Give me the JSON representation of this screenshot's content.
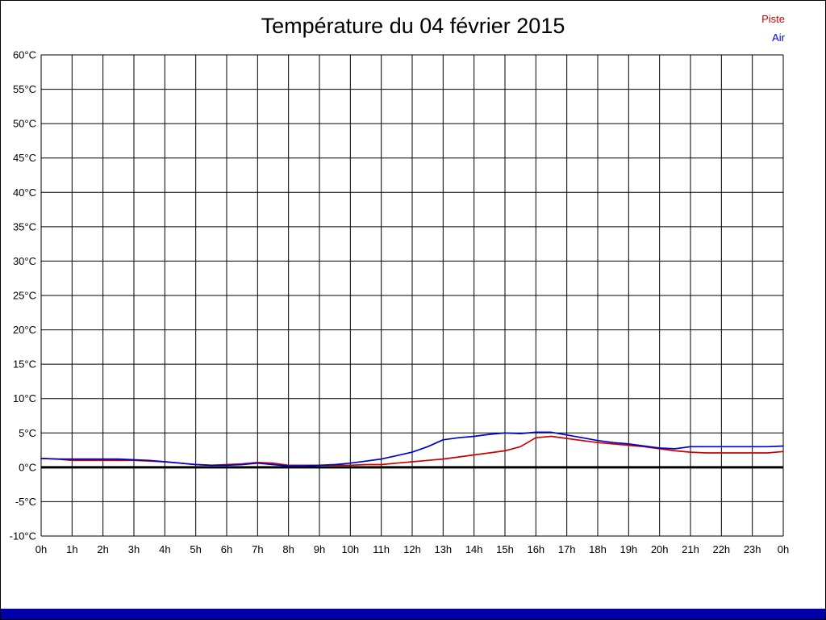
{
  "header": {
    "title": "Température du 04 février 2015"
  },
  "legend": {
    "items": [
      {
        "label": "Piste",
        "color": "#cc0000"
      },
      {
        "label": "Air",
        "color": "#0000cc"
      }
    ]
  },
  "footer": {
    "bar_color": "#0000aa"
  },
  "chart_data": {
    "type": "line",
    "title": "Température du 04 février 2015",
    "xlabel": "",
    "ylabel": "",
    "xlim": [
      0,
      24
    ],
    "ylim": [
      -10,
      60
    ],
    "grid": true,
    "grid_color": "#000000",
    "zero_line": true,
    "legend_position": "top-right",
    "y_tick_step": 5,
    "y_tick_labels": [
      "60°C",
      "55°C",
      "50°C",
      "45°C",
      "40°C",
      "35°C",
      "30°C",
      "25°C",
      "20°C",
      "15°C",
      "10°C",
      "5°C",
      "0°C",
      "-5°C",
      "-10°C"
    ],
    "x_tick_labels": [
      "0h",
      "1h",
      "2h",
      "3h",
      "4h",
      "5h",
      "6h",
      "7h",
      "8h",
      "9h",
      "10h",
      "11h",
      "12h",
      "13h",
      "14h",
      "15h",
      "16h",
      "17h",
      "18h",
      "19h",
      "20h",
      "21h",
      "22h",
      "23h",
      "0h"
    ],
    "x_step_hours": 0.5,
    "series": [
      {
        "name": "Piste",
        "color": "#cc0000",
        "values": [
          1.3,
          1.2,
          1.0,
          1.0,
          1.0,
          1.0,
          1.0,
          0.9,
          0.8,
          0.6,
          0.4,
          0.3,
          0.4,
          0.5,
          0.7,
          0.6,
          0.3,
          0.3,
          0.3,
          0.3,
          0.3,
          0.4,
          0.4,
          0.6,
          0.8,
          1.0,
          1.2,
          1.5,
          1.8,
          2.1,
          2.4,
          3.0,
          4.3,
          4.5,
          4.2,
          3.9,
          3.6,
          3.4,
          3.2,
          3.0,
          2.7,
          2.4,
          2.2,
          2.1,
          2.1,
          2.1,
          2.1,
          2.1,
          2.3
        ]
      },
      {
        "name": "Air",
        "color": "#0000cc",
        "values": [
          1.3,
          1.2,
          1.2,
          1.2,
          1.2,
          1.2,
          1.1,
          1.0,
          0.8,
          0.6,
          0.4,
          0.3,
          0.3,
          0.4,
          0.6,
          0.4,
          0.2,
          0.2,
          0.3,
          0.4,
          0.6,
          0.9,
          1.2,
          1.7,
          2.2,
          3.0,
          4.0,
          4.3,
          4.5,
          4.8,
          5.0,
          4.9,
          5.1,
          5.1,
          4.7,
          4.3,
          3.9,
          3.6,
          3.4,
          3.1,
          2.8,
          2.7,
          3.0,
          3.0,
          3.0,
          3.0,
          3.0,
          3.0,
          3.1
        ]
      }
    ]
  }
}
